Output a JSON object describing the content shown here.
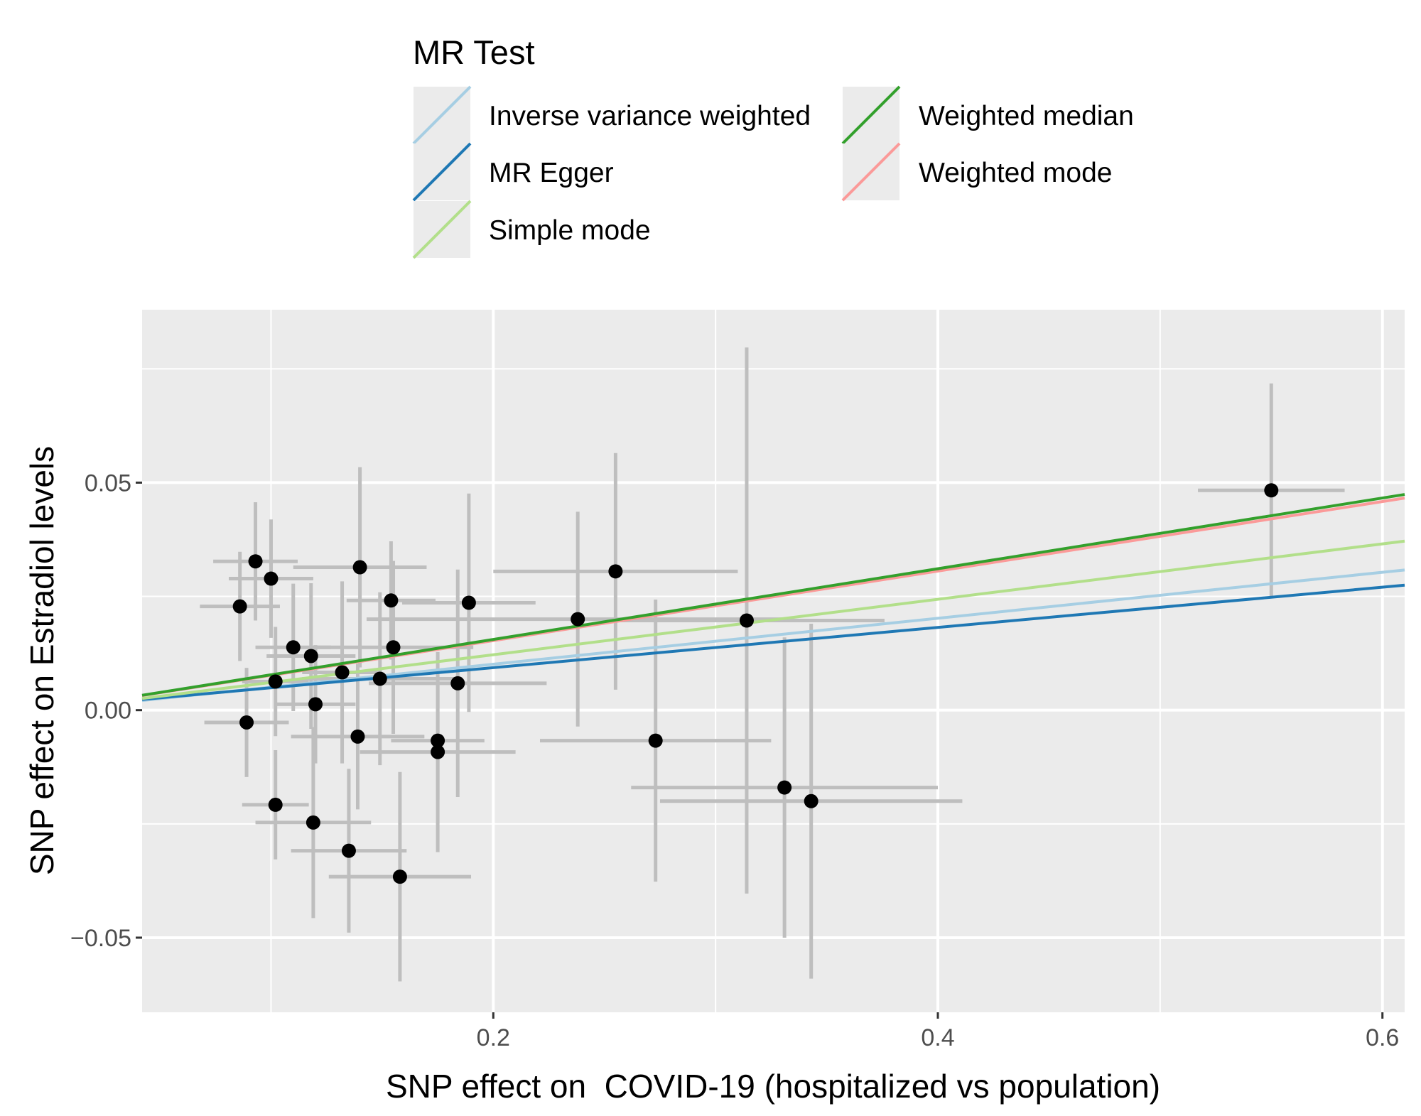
{
  "chart_data": {
    "type": "scatter",
    "title": "",
    "xlabel": "SNP effect on  COVID-19 (hospitalized vs population)",
    "ylabel": "SNP effect on Estradiol levels",
    "xlim": [
      0.042,
      0.61
    ],
    "ylim": [
      -0.0664,
      0.088
    ],
    "x_ticks": [
      0.2,
      0.4,
      0.6
    ],
    "x_tick_labels": [
      "0.2",
      "0.4",
      "0.6"
    ],
    "x_minor": [
      0.1,
      0.3,
      0.5
    ],
    "y_ticks": [
      0.05,
      0.0,
      -0.05
    ],
    "y_tick_labels": [
      "0.05",
      "0.00",
      "−0.05"
    ],
    "y_minor": [
      0.075,
      0.025,
      -0.025
    ],
    "grid": true,
    "legend": {
      "title": "MR Test",
      "placement": "top",
      "entries": [
        {
          "name": "Inverse variance weighted",
          "color": "#a6cee3"
        },
        {
          "name": "MR Egger",
          "color": "#1f78b4"
        },
        {
          "name": "Simple mode",
          "color": "#b2df8a"
        },
        {
          "name": "Weighted median",
          "color": "#33a02c"
        },
        {
          "name": "Weighted mode",
          "color": "#fb9a99"
        }
      ]
    },
    "lines": [
      {
        "name": "Inverse variance weighted",
        "color": "#a6cee3",
        "slope": 0.0505,
        "intercept": 0.0
      },
      {
        "name": "MR Egger",
        "color": "#1f78b4",
        "slope": 0.0442,
        "intercept": 0.0005
      },
      {
        "name": "Simple mode",
        "color": "#b2df8a",
        "slope": 0.0609,
        "intercept": 0.0
      },
      {
        "name": "Weighted mode",
        "color": "#fb9a99",
        "slope": 0.0764,
        "intercept": 0.0
      },
      {
        "name": "Weighted median",
        "color": "#33a02c",
        "slope": 0.0777,
        "intercept": 0.0
      }
    ],
    "points": [
      {
        "x": 0.093,
        "y": 0.0327,
        "xse": 0.019,
        "yse": 0.013
      },
      {
        "x": 0.1,
        "y": 0.0289,
        "xse": 0.019,
        "yse": 0.013
      },
      {
        "x": 0.086,
        "y": 0.0228,
        "xse": 0.018,
        "yse": 0.012
      },
      {
        "x": 0.14,
        "y": 0.0314,
        "xse": 0.03,
        "yse": 0.022
      },
      {
        "x": 0.154,
        "y": 0.0241,
        "xse": 0.02,
        "yse": 0.013
      },
      {
        "x": 0.189,
        "y": 0.0236,
        "xse": 0.03,
        "yse": 0.024
      },
      {
        "x": 0.11,
        "y": 0.0138,
        "xse": 0.017,
        "yse": 0.014
      },
      {
        "x": 0.118,
        "y": 0.0119,
        "xse": 0.02,
        "yse": 0.016
      },
      {
        "x": 0.155,
        "y": 0.0138,
        "xse": 0.036,
        "yse": 0.019
      },
      {
        "x": 0.102,
        "y": 0.0063,
        "xse": 0.015,
        "yse": 0.012
      },
      {
        "x": 0.132,
        "y": 0.0083,
        "xse": 0.018,
        "yse": 0.02
      },
      {
        "x": 0.149,
        "y": 0.0069,
        "xse": 0.035,
        "yse": 0.019
      },
      {
        "x": 0.184,
        "y": 0.0059,
        "xse": 0.04,
        "yse": 0.025
      },
      {
        "x": 0.12,
        "y": 0.0013,
        "xse": 0.018,
        "yse": 0.013
      },
      {
        "x": 0.089,
        "y": -0.0027,
        "xse": 0.019,
        "yse": 0.012
      },
      {
        "x": 0.139,
        "y": -0.0058,
        "xse": 0.03,
        "yse": 0.016
      },
      {
        "x": 0.175,
        "y": -0.0067,
        "xse": 0.021,
        "yse": 0.013
      },
      {
        "x": 0.175,
        "y": -0.0092,
        "xse": 0.035,
        "yse": 0.022
      },
      {
        "x": 0.102,
        "y": -0.0208,
        "xse": 0.015,
        "yse": 0.012
      },
      {
        "x": 0.119,
        "y": -0.0247,
        "xse": 0.026,
        "yse": 0.021
      },
      {
        "x": 0.135,
        "y": -0.0309,
        "xse": 0.026,
        "yse": 0.018
      },
      {
        "x": 0.158,
        "y": -0.0366,
        "xse": 0.032,
        "yse": 0.023
      },
      {
        "x": 0.238,
        "y": 0.02,
        "xse": 0.095,
        "yse": 0.0236
      },
      {
        "x": 0.255,
        "y": 0.0305,
        "xse": 0.055,
        "yse": 0.026
      },
      {
        "x": 0.273,
        "y": -0.0067,
        "xse": 0.052,
        "yse": 0.031
      },
      {
        "x": 0.314,
        "y": 0.0197,
        "xse": 0.062,
        "yse": 0.06
      },
      {
        "x": 0.331,
        "y": -0.017,
        "xse": 0.069,
        "yse": 0.033
      },
      {
        "x": 0.343,
        "y": -0.02,
        "xse": 0.068,
        "yse": 0.039
      },
      {
        "x": 0.55,
        "y": 0.0483,
        "xse": 0.033,
        "yse": 0.0235
      }
    ]
  }
}
